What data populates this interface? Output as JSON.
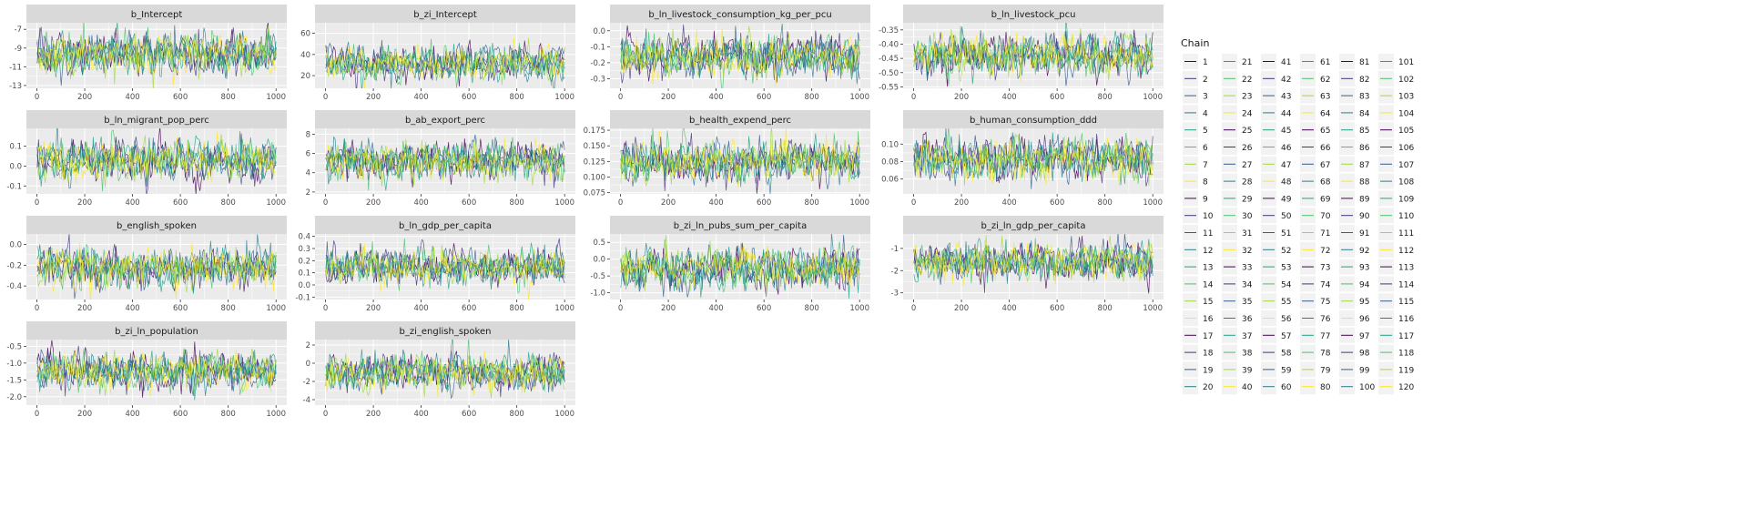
{
  "chart_data": {
    "type": "line",
    "figure_kind": "mcmc-trace-facets",
    "x": {
      "range": [
        1,
        1000
      ],
      "ticks": [
        0,
        200,
        400,
        600,
        800,
        1000
      ]
    },
    "grid": true,
    "legend": {
      "title": "Chain",
      "placement": "right",
      "labels": [
        "1",
        "2",
        "3",
        "4",
        "5",
        "6",
        "7",
        "8",
        "9",
        "10",
        "11",
        "12",
        "13",
        "14",
        "15",
        "16",
        "17",
        "18",
        "19",
        "20",
        "21",
        "22",
        "23",
        "24",
        "25",
        "26",
        "27",
        "28",
        "29",
        "30",
        "31",
        "32",
        "33",
        "34",
        "35",
        "36",
        "37",
        "38",
        "39",
        "40",
        "41",
        "42",
        "43",
        "44",
        "45",
        "46",
        "47",
        "48",
        "49",
        "50",
        "51",
        "52",
        "53",
        "54",
        "55",
        "56",
        "57",
        "58",
        "59",
        "60",
        "61",
        "62",
        "63",
        "64",
        "65",
        "66",
        "67",
        "68",
        "69",
        "70",
        "71",
        "72",
        "73",
        "74",
        "75",
        "76",
        "77",
        "78",
        "79",
        "80",
        "81",
        "82",
        "83",
        "84",
        "85",
        "86",
        "87",
        "88",
        "89",
        "90",
        "91",
        "92",
        "93",
        "94",
        "95",
        "96",
        "97",
        "98",
        "99",
        "100",
        "101",
        "102",
        "103",
        "104",
        "105",
        "106",
        "107",
        "108",
        "109",
        "110",
        "111",
        "112",
        "113",
        "114",
        "115",
        "116",
        "117",
        "118",
        "119",
        "120"
      ]
    },
    "colors": {
      "strip_bg": "#d9d9d9",
      "panel_bg": "#ebebeb",
      "grid": "#ffffff",
      "text": "#1a1a1a",
      "axis_text": "#4d4d4d"
    },
    "palette": [
      "#440154",
      "#46327e",
      "#365c8d",
      "#277f8e",
      "#1fa187",
      "#4ac16d",
      "#a0da39",
      "#fde725"
    ],
    "panels": [
      {
        "title": "b_Intercept",
        "yticks": [
          -13,
          -11,
          -9,
          -7
        ],
        "ylim": [
          -13.3,
          -6.3
        ],
        "summary": {
          "mean": -9.6,
          "sd": 1.1
        }
      },
      {
        "title": "b_zi_Intercept",
        "yticks": [
          20,
          40,
          60
        ],
        "ylim": [
          8,
          70
        ],
        "summary": {
          "mean": 32,
          "sd": 8
        }
      },
      {
        "title": "b_ln_livestock_consumption_kg_per_pcu",
        "yticks": [
          -0.3,
          -0.2,
          -0.1,
          0.0
        ],
        "ylim": [
          -0.36,
          0.05
        ],
        "summary": {
          "mean": -0.16,
          "sd": 0.065
        }
      },
      {
        "title": "b_ln_livestock_pcu",
        "yticks": [
          -0.55,
          -0.5,
          -0.45,
          -0.4,
          -0.35
        ],
        "ylim": [
          -0.555,
          -0.325
        ],
        "summary": {
          "mean": -0.44,
          "sd": 0.035
        }
      },
      {
        "title": "b_ln_migrant_pop_perc",
        "yticks": [
          -0.1,
          0.0,
          0.1
        ],
        "ylim": [
          -0.14,
          0.19
        ],
        "summary": {
          "mean": 0.03,
          "sd": 0.05
        }
      },
      {
        "title": "b_ab_export_perc",
        "yticks": [
          2,
          4,
          6,
          8
        ],
        "ylim": [
          1.8,
          8.6
        ],
        "summary": {
          "mean": 5.2,
          "sd": 0.95
        }
      },
      {
        "title": "b_health_expend_perc",
        "yticks": [
          0.075,
          0.1,
          0.125,
          0.15,
          0.175
        ],
        "ylim": [
          0.073,
          0.178
        ],
        "summary": {
          "mean": 0.125,
          "sd": 0.016
        }
      },
      {
        "title": "b_human_consumption_ddd",
        "yticks": [
          0.06,
          0.08,
          0.1
        ],
        "ylim": [
          0.043,
          0.118
        ],
        "summary": {
          "mean": 0.083,
          "sd": 0.012
        }
      },
      {
        "title": "b_english_spoken",
        "yticks": [
          -0.4,
          -0.2,
          0.0
        ],
        "ylim": [
          -0.53,
          0.1
        ],
        "summary": {
          "mean": -0.22,
          "sd": 0.095
        }
      },
      {
        "title": "b_ln_gdp_per_capita",
        "yticks": [
          -0.1,
          0.0,
          0.1,
          0.2,
          0.3,
          0.4
        ],
        "ylim": [
          -0.12,
          0.42
        ],
        "summary": {
          "mean": 0.15,
          "sd": 0.075
        }
      },
      {
        "title": "b_zi_ln_pubs_sum_per_capita",
        "yticks": [
          -1.0,
          -0.5,
          0.0,
          0.5
        ],
        "ylim": [
          -1.2,
          0.75
        ],
        "summary": {
          "mean": -0.25,
          "sd": 0.3
        }
      },
      {
        "title": "b_zi_ln_gdp_per_capita",
        "yticks": [
          -3,
          -2,
          -1
        ],
        "ylim": [
          -3.3,
          -0.35
        ],
        "summary": {
          "mean": -1.6,
          "sd": 0.42
        }
      },
      {
        "title": "b_zi_ln_population",
        "yticks": [
          -2.0,
          -1.5,
          -1.0,
          -0.5
        ],
        "ylim": [
          -2.25,
          -0.3
        ],
        "summary": {
          "mean": -1.25,
          "sd": 0.28
        }
      },
      {
        "title": "b_zi_english_spoken",
        "yticks": [
          -4,
          -2,
          0,
          2
        ],
        "ylim": [
          -4.6,
          2.6
        ],
        "summary": {
          "mean": -1.0,
          "sd": 1.0
        }
      }
    ]
  }
}
